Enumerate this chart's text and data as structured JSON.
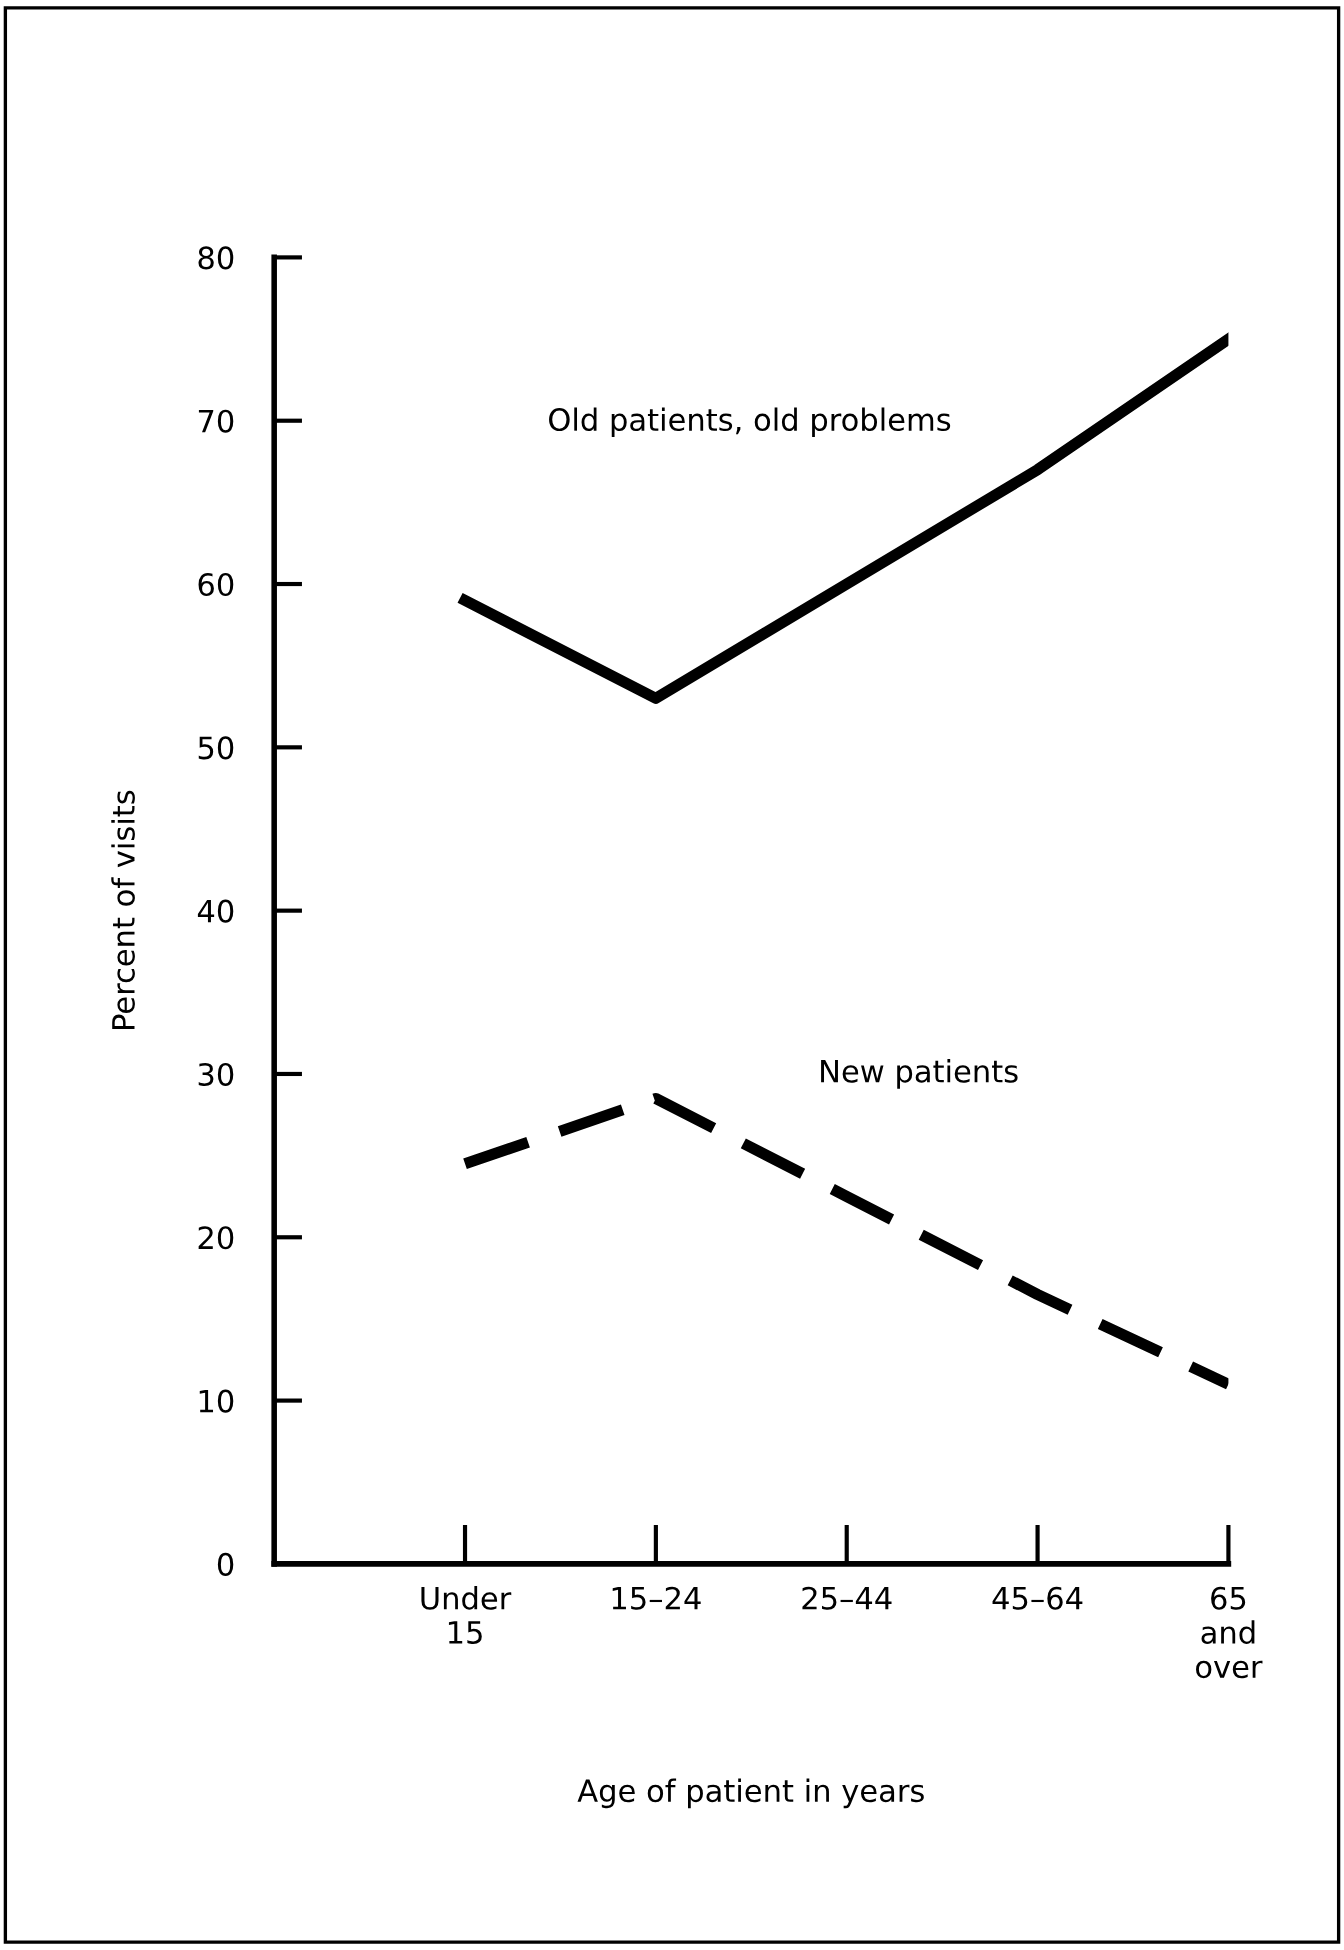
{
  "chart_data": {
    "type": "line",
    "xlabel": "Age of patient in years",
    "ylabel": "Percent of visits",
    "categories": [
      "Under\n15",
      "15–24",
      "25–44",
      "45–64",
      "65\nand\nover"
    ],
    "series": [
      {
        "name": "Old patients, old problems",
        "color": "#000000",
        "line_style": "solid",
        "values": [
          59,
          53,
          60,
          67,
          75
        ]
      },
      {
        "name": "New patients",
        "color": "#000000",
        "line_style": "dashed",
        "values": [
          24.5,
          28.5,
          22.5,
          16.5,
          11
        ]
      }
    ],
    "ylim": [
      0,
      80
    ],
    "yticks": [
      0,
      10,
      20,
      30,
      40,
      50,
      60,
      70,
      80
    ],
    "grid": false,
    "legend": false,
    "marker": "none"
  }
}
